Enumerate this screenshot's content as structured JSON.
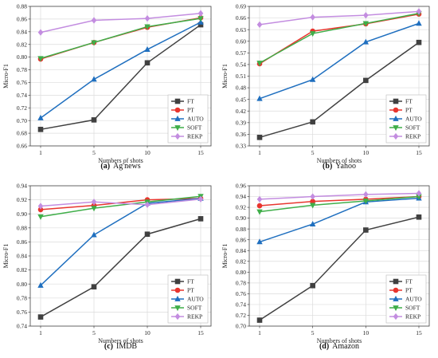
{
  "colors": {
    "FT": "#404040",
    "PT": "#e8352e",
    "AUTO": "#1f6fbf",
    "SOFT": "#3fae49",
    "REKP": "#c38de0"
  },
  "chart_data": [
    {
      "type": "line",
      "caption_letter": "(a)",
      "caption_text": "Ag'news",
      "xlabel": "Numbers of shots",
      "ylabel": "Micro-F1",
      "categories": [
        "1",
        "5",
        "10",
        "15"
      ],
      "ylim": [
        0.66,
        0.88
      ],
      "yticks": [
        "0.66",
        "0.68",
        "0.70",
        "0.72",
        "0.74",
        "0.76",
        "0.78",
        "0.80",
        "0.82",
        "0.84",
        "0.86",
        "0.88"
      ],
      "grid": true,
      "legend": "bottom-right",
      "series": [
        {
          "name": "FT",
          "marker": "square",
          "values": [
            0.686,
            0.701,
            0.791,
            0.851
          ]
        },
        {
          "name": "PT",
          "marker": "circle",
          "values": [
            0.797,
            0.823,
            0.847,
            0.862
          ]
        },
        {
          "name": "AUTO",
          "marker": "triangle-up",
          "values": [
            0.704,
            0.765,
            0.812,
            0.855
          ]
        },
        {
          "name": "SOFT",
          "marker": "triangle-down",
          "values": [
            0.798,
            0.823,
            0.848,
            0.861
          ]
        },
        {
          "name": "REKP",
          "marker": "diamond",
          "values": [
            0.839,
            0.858,
            0.861,
            0.869
          ]
        }
      ]
    },
    {
      "type": "line",
      "caption_letter": "(b)",
      "caption_text": "Yahoo",
      "xlabel": "Numbers of shots",
      "ylabel": "Micro-F1",
      "categories": [
        "1",
        "5",
        "10",
        "15"
      ],
      "ylim": [
        0.33,
        0.69
      ],
      "yticks": [
        "0.33",
        "0.36",
        "0.39",
        "0.42",
        "0.45",
        "0.48",
        "0.51",
        "0.54",
        "0.57",
        "0.60",
        "0.63",
        "0.66",
        "0.69"
      ],
      "grid": true,
      "legend": "bottom-right",
      "series": [
        {
          "name": "FT",
          "marker": "square",
          "values": [
            0.352,
            0.392,
            0.499,
            0.597
          ]
        },
        {
          "name": "PT",
          "marker": "circle",
          "values": [
            0.542,
            0.626,
            0.645,
            0.67
          ]
        },
        {
          "name": "AUTO",
          "marker": "triangle-up",
          "values": [
            0.452,
            0.501,
            0.598,
            0.646
          ]
        },
        {
          "name": "SOFT",
          "marker": "triangle-down",
          "values": [
            0.544,
            0.62,
            0.646,
            0.672
          ]
        },
        {
          "name": "REKP",
          "marker": "diamond",
          "values": [
            0.643,
            0.662,
            0.667,
            0.677
          ]
        }
      ]
    },
    {
      "type": "line",
      "caption_letter": "(c)",
      "caption_text": "IMDB",
      "xlabel": "Numbers of shots",
      "ylabel": "Micro-F1",
      "categories": [
        "1",
        "5",
        "10",
        "15"
      ],
      "ylim": [
        0.74,
        0.94
      ],
      "yticks": [
        "0.74",
        "0.76",
        "0.78",
        "0.80",
        "0.82",
        "0.84",
        "0.86",
        "0.88",
        "0.90",
        "0.92",
        "0.94"
      ],
      "grid": true,
      "legend": "bottom-right",
      "series": [
        {
          "name": "FT",
          "marker": "square",
          "values": [
            0.753,
            0.796,
            0.871,
            0.893
          ]
        },
        {
          "name": "PT",
          "marker": "circle",
          "values": [
            0.906,
            0.912,
            0.92,
            0.922
          ]
        },
        {
          "name": "AUTO",
          "marker": "triangle-up",
          "values": [
            0.798,
            0.87,
            0.915,
            0.922
          ]
        },
        {
          "name": "SOFT",
          "marker": "triangle-down",
          "values": [
            0.896,
            0.908,
            0.917,
            0.925
          ]
        },
        {
          "name": "REKP",
          "marker": "diamond",
          "values": [
            0.911,
            0.917,
            0.913,
            0.921
          ]
        }
      ]
    },
    {
      "type": "line",
      "caption_letter": "(d)",
      "caption_text": "Amazon",
      "xlabel": "Numbers of shots",
      "ylabel": "Micro-F1",
      "categories": [
        "1",
        "5",
        "10",
        "15"
      ],
      "ylim": [
        0.7,
        0.96
      ],
      "yticks": [
        "0.70",
        "0.72",
        "0.74",
        "0.76",
        "0.78",
        "0.80",
        "0.82",
        "0.84",
        "0.86",
        "0.88",
        "0.90",
        "0.92",
        "0.94",
        "0.96"
      ],
      "grid": true,
      "legend": "bottom-right",
      "series": [
        {
          "name": "FT",
          "marker": "square",
          "values": [
            0.711,
            0.775,
            0.878,
            0.902
          ]
        },
        {
          "name": "PT",
          "marker": "circle",
          "values": [
            0.923,
            0.931,
            0.935,
            0.94
          ]
        },
        {
          "name": "AUTO",
          "marker": "triangle-up",
          "values": [
            0.856,
            0.889,
            0.93,
            0.937
          ]
        },
        {
          "name": "SOFT",
          "marker": "triangle-down",
          "values": [
            0.912,
            0.924,
            0.932,
            0.94
          ]
        },
        {
          "name": "REKP",
          "marker": "diamond",
          "values": [
            0.935,
            0.94,
            0.944,
            0.946
          ]
        }
      ]
    }
  ]
}
